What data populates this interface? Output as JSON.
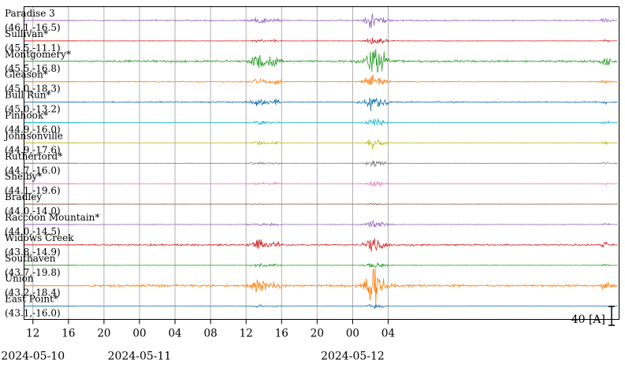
{
  "chart_data": {
    "type": "line",
    "title": "",
    "xlabel": "",
    "ylabel": "",
    "x_range": [
      "2024-05-10 11:00",
      "2024-05-13 06:00"
    ],
    "x_ticks": [
      {
        "t": "2024-05-10 12:00",
        "label": "12"
      },
      {
        "t": "2024-05-10 16:00",
        "label": "16"
      },
      {
        "t": "2024-05-10 20:00",
        "label": "20"
      },
      {
        "t": "2024-05-11 00:00",
        "label": "00"
      },
      {
        "t": "2024-05-11 04:00",
        "label": "04"
      },
      {
        "t": "2024-05-11 08:00",
        "label": "08"
      },
      {
        "t": "2024-05-11 12:00",
        "label": "12"
      },
      {
        "t": "2024-05-11 16:00",
        "label": "16"
      },
      {
        "t": "2024-05-11 20:00",
        "label": "20"
      },
      {
        "t": "2024-05-12 00:00",
        "label": "00"
      },
      {
        "t": "2024-05-12 04:00",
        "label": "04"
      }
    ],
    "date_labels": [
      {
        "t": "2024-05-10 12:00",
        "label": "2024-05-10"
      },
      {
        "t": "2024-05-11 00:00",
        "label": "2024-05-11"
      },
      {
        "t": "2024-05-12 00:00",
        "label": "2024-05-12"
      }
    ],
    "vertical_grid": true,
    "scale_bar": {
      "value": 40,
      "label": "40 [A]"
    },
    "data_start": "2024-05-10 17:00",
    "series": [
      {
        "name": "Paradise 3",
        "coords": "(46.1,-16.5)",
        "color": "#9467bd",
        "amp": 0.45,
        "event_amp": 1.0
      },
      {
        "name": "Sullivan*",
        "coords": "(45.5,-11.1)",
        "color": "#d62728",
        "amp": 0.12,
        "event_amp": 0.55
      },
      {
        "name": "Montgomery*",
        "coords": "(45.5,-16.8)",
        "color": "#2ca02c",
        "amp": 0.8,
        "event_amp": 2.2
      },
      {
        "name": "Gleason*",
        "coords": "(45.0,-18.3)",
        "color": "#ff7f0e",
        "amp": 0.35,
        "event_amp": 1.1
      },
      {
        "name": "Bull Run*",
        "coords": "(45.0,-13.2)",
        "color": "#1f77b4",
        "amp": 0.5,
        "event_amp": 1.0
      },
      {
        "name": "Pinhook*",
        "coords": "(44.9,-16.0)",
        "color": "#17becf",
        "amp": 0.15,
        "event_amp": 0.6
      },
      {
        "name": "Johnsonville",
        "coords": "(44.9,-17.6)",
        "color": "#bcbd22",
        "amp": 0.15,
        "event_amp": 0.55
      },
      {
        "name": "Rutherford*",
        "coords": "(44.7,-16.0)",
        "color": "#7f7f7f",
        "amp": 0.12,
        "event_amp": 0.45
      },
      {
        "name": "Shelby*",
        "coords": "(44.1,-19.6)",
        "color": "#e377c2",
        "amp": 0.12,
        "event_amp": 0.4
      },
      {
        "name": "Bradley",
        "coords": "(44.0,-14.0)",
        "color": "#8c564b",
        "amp": 0.05,
        "event_amp": 0.1
      },
      {
        "name": "Raccoon Mountain*",
        "coords": "(44.0,-14.5)",
        "color": "#9467bd",
        "amp": 0.2,
        "event_amp": 0.6
      },
      {
        "name": "Widows Creek",
        "coords": "(43.8,-14.9)",
        "color": "#d62728",
        "amp": 0.6,
        "event_amp": 1.2
      },
      {
        "name": "Southaven",
        "coords": "(43.7,-19.8)",
        "color": "#2ca02c",
        "amp": 0.15,
        "event_amp": 0.5
      },
      {
        "name": "Union",
        "coords": "(43.2,-18.4)",
        "color": "#ff7f0e",
        "amp": 0.9,
        "event_amp": 2.0
      },
      {
        "name": "East Point*",
        "coords": "(43.1,-16.0)",
        "color": "#1f77b4",
        "amp": 0.1,
        "event_amp": 0.3
      }
    ]
  }
}
